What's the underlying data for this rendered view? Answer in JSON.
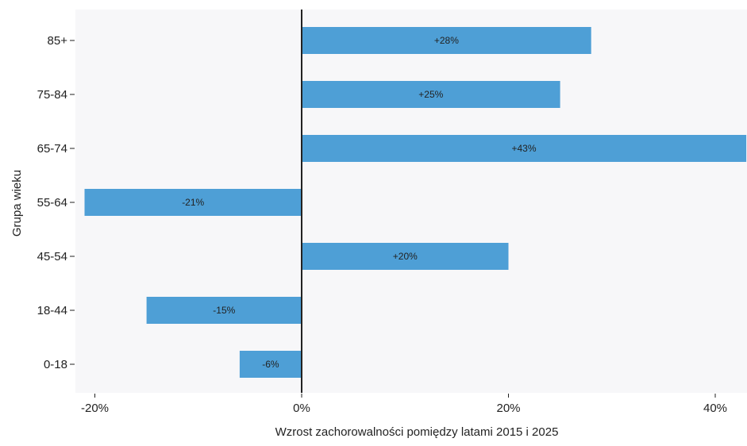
{
  "chart_data": {
    "type": "bar",
    "orientation": "horizontal",
    "categories": [
      "85+",
      "75-84",
      "65-74",
      "55-64",
      "45-54",
      "18-44",
      "0-18"
    ],
    "values": [
      28,
      25,
      43,
      -21,
      20,
      -15,
      -6
    ],
    "data_labels": [
      "+28%",
      "+25%",
      "+43%",
      "-21%",
      "+20%",
      "-15%",
      "-6%"
    ],
    "xlabel": "Wzrost zachorowalności pomiędzy latami 2015 i 2025",
    "ylabel": "Grupa wieku",
    "x_ticks": [
      -20,
      0,
      20,
      40
    ],
    "x_tick_labels": [
      "-20%",
      "0%",
      "20%",
      "40%"
    ],
    "xlim": [
      -21,
      43
    ],
    "unit": "%",
    "grid": false,
    "legend": "none",
    "colors": {
      "bar": "#4e9fd6",
      "plot_background": "#f7f7f9",
      "zero_line": "#222222",
      "text": "#222222"
    }
  }
}
